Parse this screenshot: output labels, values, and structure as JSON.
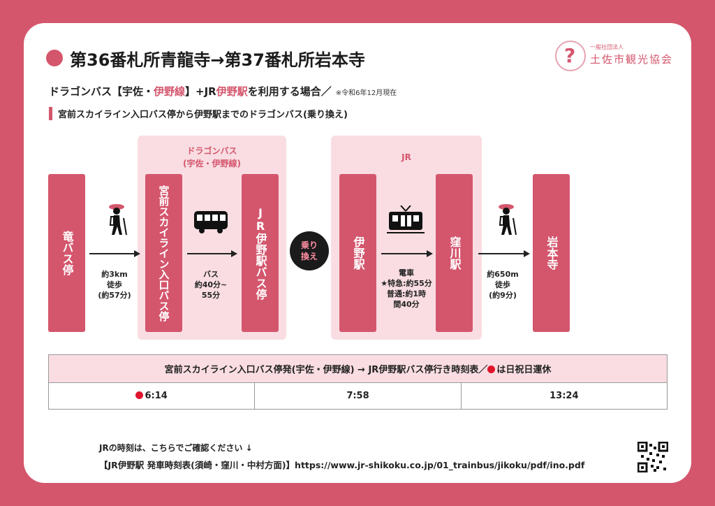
{
  "header": {
    "title": "第36番札所青龍寺→第37番札所岩本寺",
    "logo_sub": "一般社団法人",
    "logo_name": "土佐市観光協会",
    "logo_icon": "question-mark-logo"
  },
  "subtitle": {
    "part1": "ドラゴンバス【宇佐・",
    "part2": "伊野線",
    "part3": "】+JR",
    "part4": "伊野駅",
    "part5": "を利用する場合／",
    "note": "※令和6年12月現在"
  },
  "section_label": "宮前スカイライン入口バス停から伊野駅までのドラゴンバス(乗り換え)",
  "route": {
    "group_bus_label_1": "ドラゴンバス",
    "group_bus_label_2": "(宇佐・伊野線)",
    "group_jr_label": "JR",
    "stops": [
      "竜バス停",
      "宮前スカイライン入口バス停",
      "JR伊野駅バス停",
      "伊野駅",
      "窪川駅",
      "岩本寺"
    ],
    "legs": [
      {
        "icon": "hiker-icon",
        "lines": [
          "約3km",
          "徒歩",
          "(約57分)"
        ]
      },
      {
        "icon": "bus-icon",
        "lines": [
          "バス",
          "約40分~",
          "55分"
        ]
      },
      {
        "icon": "train-icon",
        "lines": [
          "電車",
          "★特急:約55分",
          "普通:約1時",
          "間40分"
        ]
      },
      {
        "icon": "hiker-icon",
        "lines": [
          "約650m",
          "徒歩",
          "(約9分)"
        ]
      }
    ],
    "transfer": [
      "乗り",
      "換え"
    ]
  },
  "timetable": {
    "header_text": "宮前スカイライン入口バス停発(宇佐・伊野線) → JR伊野駅バス停行き時刻表／",
    "header_note": "は日祝日運休",
    "times": [
      "6:14",
      "7:58",
      "13:24"
    ],
    "holiday_flags": [
      true,
      false,
      false
    ]
  },
  "footer": {
    "line1": "JRの時刻は、こちらでご確認ください ↓",
    "line2": "【JR伊野駅 発車時刻表(須崎・窪川・中村方面)】https://www.jr-shikoku.co.jp/01_trainbus/jikoku/pdf/ino.pdf",
    "qr_icon": "qr-code"
  },
  "colors": {
    "brand_pink": "#d4566d",
    "light_pink": "#f9dde2",
    "holiday_red": "#e0142b"
  }
}
